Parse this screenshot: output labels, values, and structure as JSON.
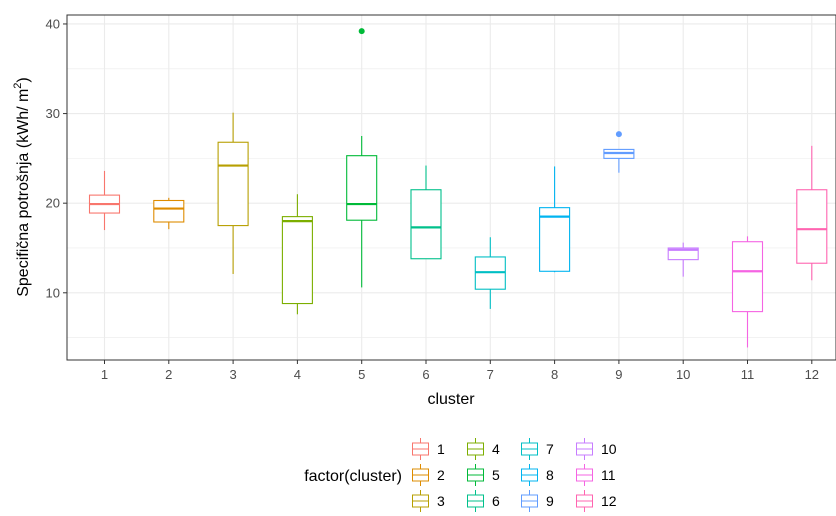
{
  "chart_data": {
    "type": "boxplot",
    "xlabel": "cluster",
    "ylabel": "Specifična potrošnja (kWh/ m",
    "ylabel_sup": "2",
    "ylabel_close": ")",
    "ylim": [
      2.5,
      41
    ],
    "yticks": [
      10,
      20,
      30,
      40
    ],
    "categories": [
      "1",
      "2",
      "3",
      "4",
      "5",
      "6",
      "7",
      "8",
      "9",
      "10",
      "11",
      "12"
    ],
    "legend": {
      "title": "factor(cluster)",
      "position": "bottom"
    },
    "series": [
      {
        "name": "1",
        "color": "#F8766D",
        "whisker_low": 17.0,
        "q1": 18.9,
        "median": 19.9,
        "q3": 20.9,
        "whisker_high": 23.6,
        "outliers": []
      },
      {
        "name": "2",
        "color": "#DE8C00",
        "whisker_low": 17.1,
        "q1": 17.9,
        "median": 19.4,
        "q3": 20.3,
        "whisker_high": 20.6,
        "outliers": []
      },
      {
        "name": "3",
        "color": "#B79F00",
        "whisker_low": 12.1,
        "q1": 17.5,
        "median": 24.2,
        "q3": 26.8,
        "whisker_high": 30.1,
        "outliers": []
      },
      {
        "name": "4",
        "color": "#7CAE00",
        "whisker_low": 7.6,
        "q1": 8.8,
        "median": 18.0,
        "q3": 18.5,
        "whisker_high": 21.0,
        "outliers": []
      },
      {
        "name": "5",
        "color": "#00BA38",
        "whisker_low": 10.6,
        "q1": 18.1,
        "median": 19.9,
        "q3": 25.3,
        "whisker_high": 27.5,
        "outliers": [
          39.2
        ]
      },
      {
        "name": "6",
        "color": "#00C08B",
        "whisker_low": 13.8,
        "q1": 13.8,
        "median": 17.3,
        "q3": 21.5,
        "whisker_high": 24.2,
        "outliers": []
      },
      {
        "name": "7",
        "color": "#00BFC4",
        "whisker_low": 8.2,
        "q1": 10.4,
        "median": 12.3,
        "q3": 14.0,
        "whisker_high": 16.2,
        "outliers": []
      },
      {
        "name": "8",
        "color": "#00B4F0",
        "whisker_low": 12.3,
        "q1": 12.4,
        "median": 18.5,
        "q3": 19.5,
        "whisker_high": 24.1,
        "outliers": []
      },
      {
        "name": "9",
        "color": "#619CFF",
        "whisker_low": 23.4,
        "q1": 25.0,
        "median": 25.6,
        "q3": 26.0,
        "whisker_high": 26.0,
        "outliers": [
          27.7
        ]
      },
      {
        "name": "10",
        "color": "#C77CFF",
        "whisker_low": 11.8,
        "q1": 13.7,
        "median": 14.8,
        "q3": 15.0,
        "whisker_high": 15.6,
        "outliers": []
      },
      {
        "name": "11",
        "color": "#F564E3",
        "whisker_low": 3.9,
        "q1": 7.9,
        "median": 12.4,
        "q3": 15.7,
        "whisker_high": 16.3,
        "outliers": []
      },
      {
        "name": "12",
        "color": "#FF64B0",
        "whisker_low": 11.4,
        "q1": 13.3,
        "median": 17.1,
        "q3": 21.5,
        "whisker_high": 26.4,
        "outliers": []
      }
    ],
    "grid": true,
    "theme": "bw"
  }
}
